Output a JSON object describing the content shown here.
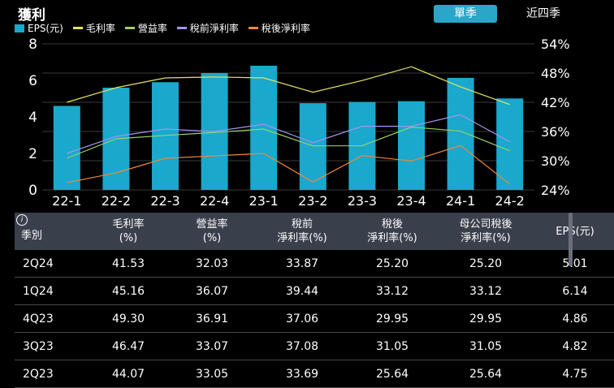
{
  "header": {
    "title": "獲利",
    "toggle_quarterly": "單季",
    "toggle_four_quarters": "近四季"
  },
  "legend": [
    {
      "label": "EPS(元)",
      "color": "#1aa8cc",
      "kind": "bar"
    },
    {
      "label": "毛利率",
      "color": "#e8e35a",
      "kind": "line"
    },
    {
      "label": "營益率",
      "color": "#9bd36a",
      "kind": "line"
    },
    {
      "label": "稅前淨利率",
      "color": "#a494f0",
      "kind": "line"
    },
    {
      "label": "稅後淨利率",
      "color": "#f0883a",
      "kind": "line"
    }
  ],
  "chart_data": {
    "type": "bar",
    "categories": [
      "22-1",
      "22-2",
      "22-3",
      "22-4",
      "23-1",
      "23-2",
      "23-3",
      "23-4",
      "24-1",
      "24-2"
    ],
    "bar_series": {
      "name": "EPS(元)",
      "values": [
        4.6,
        5.6,
        5.9,
        6.4,
        6.8,
        4.75,
        4.82,
        4.86,
        6.14,
        5.01
      ],
      "color": "#1aa8cc"
    },
    "line_series": [
      {
        "name": "毛利率",
        "values": [
          42.0,
          45.0,
          47.0,
          47.2,
          47.0,
          44.07,
          46.47,
          49.3,
          45.16,
          41.53
        ],
        "color": "#e8e35a"
      },
      {
        "name": "營益率",
        "values": [
          30.5,
          34.5,
          35.2,
          35.8,
          36.5,
          33.05,
          33.07,
          36.91,
          36.07,
          32.03
        ],
        "color": "#9bd36a"
      },
      {
        "name": "稅前淨利率",
        "values": [
          31.5,
          35.0,
          36.5,
          36.0,
          37.5,
          33.69,
          37.08,
          37.06,
          39.44,
          33.87
        ],
        "color": "#a494f0"
      },
      {
        "name": "稅後淨利率",
        "values": [
          25.5,
          27.5,
          30.5,
          31.0,
          31.5,
          25.64,
          31.05,
          29.95,
          33.12,
          25.2
        ],
        "color": "#f0883a"
      }
    ],
    "y_left": {
      "min": 0,
      "max": 8,
      "ticks": [
        "0",
        "2",
        "4",
        "6",
        "8"
      ]
    },
    "y_right": {
      "min": 24,
      "max": 54,
      "ticks": [
        "24%",
        "30%",
        "36%",
        "42%",
        "48%",
        "54%"
      ]
    },
    "grid": true,
    "legend_position": "top-left"
  },
  "table": {
    "columns": [
      {
        "line1": "季別",
        "line2": ""
      },
      {
        "line1": "毛利率",
        "line2": "(%)"
      },
      {
        "line1": "營益率",
        "line2": "(%)"
      },
      {
        "line1": "稅前",
        "line2": "淨利率(%)"
      },
      {
        "line1": "稅後",
        "line2": "淨利率(%)"
      },
      {
        "line1": "母公司稅後",
        "line2": "淨利率(%)"
      },
      {
        "line1": "EPS(元)",
        "line2": ""
      }
    ],
    "rows": [
      [
        "2Q24",
        "41.53",
        "32.03",
        "33.87",
        "25.20",
        "25.20",
        "5.01"
      ],
      [
        "1Q24",
        "45.16",
        "36.07",
        "39.44",
        "33.12",
        "33.12",
        "6.14"
      ],
      [
        "4Q23",
        "49.30",
        "36.91",
        "37.06",
        "29.95",
        "29.95",
        "4.86"
      ],
      [
        "3Q23",
        "46.47",
        "33.07",
        "37.08",
        "31.05",
        "31.05",
        "4.82"
      ],
      [
        "2Q23",
        "44.07",
        "33.05",
        "33.69",
        "25.64",
        "25.64",
        "4.75"
      ]
    ]
  }
}
